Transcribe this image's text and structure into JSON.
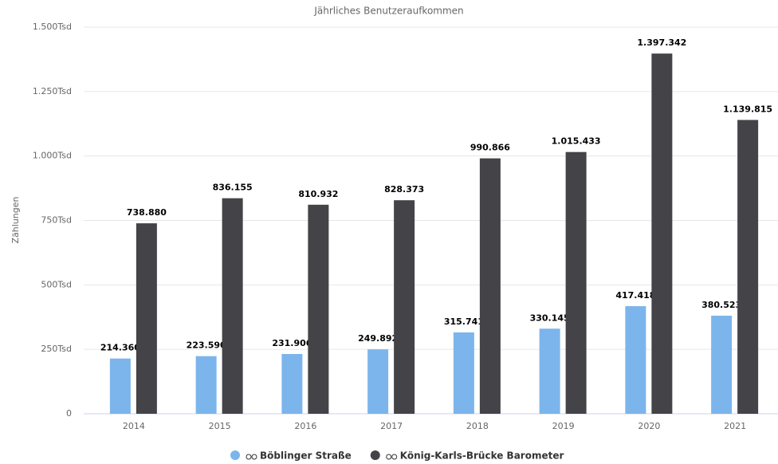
{
  "chart_data": {
    "type": "bar",
    "title": "Jährliches Benutzeraufkommen",
    "y_label": "Zählungen",
    "categories": [
      "2014",
      "2015",
      "2016",
      "2017",
      "2018",
      "2019",
      "2020",
      "2021"
    ],
    "series": [
      {
        "name": "Böblinger Straße",
        "color": "#7cb5ec",
        "values": [
          214360,
          223590,
          231906,
          249892,
          315741,
          330145,
          417418,
          380523
        ],
        "value_labels": [
          "214.360",
          "223.590",
          "231.906",
          "249.892",
          "315.741",
          "330.145",
          "417.418",
          "380.523"
        ]
      },
      {
        "name": "König-Karls-Brücke Barometer",
        "color": "#434348",
        "values": [
          738880,
          836155,
          810932,
          828373,
          990866,
          1015433,
          1397342,
          1139815
        ],
        "value_labels": [
          "738.880",
          "836.155",
          "810.932",
          "828.373",
          "990.866",
          "1.015.433",
          "1.397.342",
          "1.139.815"
        ]
      }
    ],
    "ylim": [
      0,
      1500000
    ],
    "yticks": [
      0,
      {
        "value": 250000,
        "label": "250Tsd"
      },
      {
        "value": 500000,
        "label": "500Tsd"
      },
      {
        "value": 750000,
        "label": "750Tsd"
      },
      {
        "value": 1000000,
        "label": "1.000Tsd"
      },
      {
        "value": 1250000,
        "label": "1.250Tsd"
      },
      {
        "value": 1500000,
        "label": "1.500Tsd"
      }
    ],
    "grid": true
  }
}
